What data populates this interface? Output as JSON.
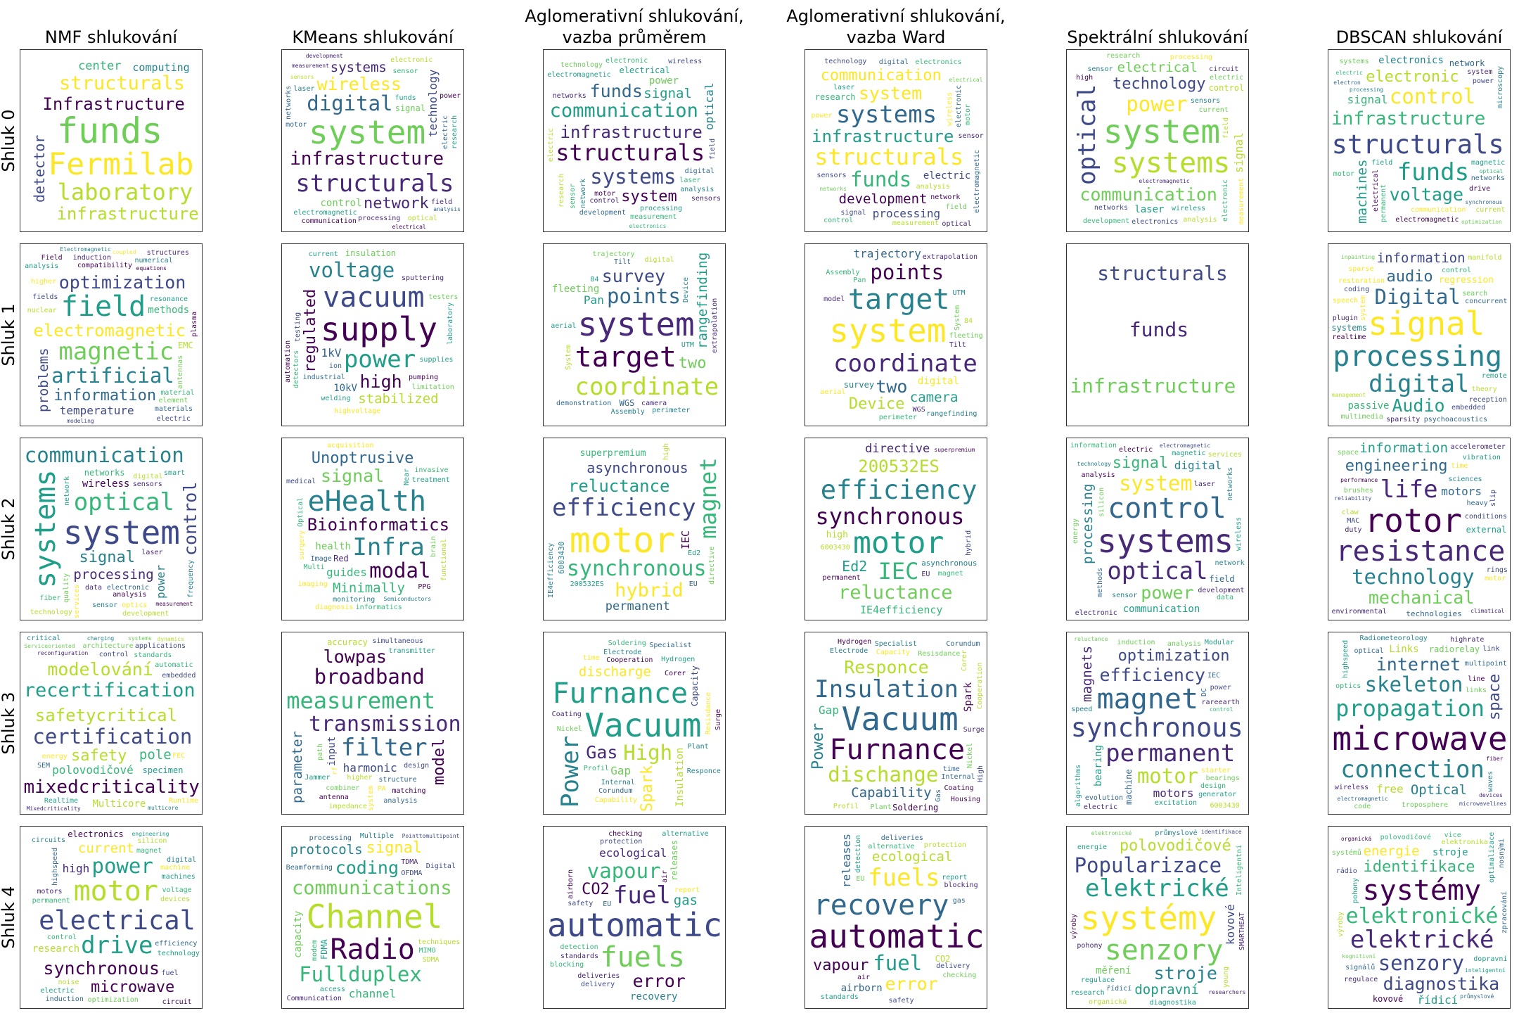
{
  "columns": [
    "NMF shlukování",
    "KMeans shlukování",
    "Aglomerativní shlukování,\nvazba průměrem",
    "Aglomerativní shlukování,\nvazba Ward",
    "Spektrální shlukování",
    "DBSCAN shlukování"
  ],
  "rows": [
    "Shluk 0",
    "Shluk 1",
    "Shluk 2",
    "Shluk 3",
    "Shluk 4"
  ],
  "palette": [
    "#440154",
    "#482878",
    "#3e4989",
    "#31688e",
    "#26828e",
    "#1f9e89",
    "#35b779",
    "#6ece58",
    "#b5de2b",
    "#fde725"
  ],
  "clouds": [
    [
      [
        "funds",
        "Fermilab",
        "Infrastructure",
        "laboratory",
        "structurals",
        "infrastructure",
        "detector",
        "center",
        "computing"
      ],
      [
        "system",
        "infrastructure",
        "structurals",
        "digital",
        "wireless",
        "network",
        "systems",
        "technology",
        "control",
        "signal",
        "electronic",
        "processing",
        "funds",
        "electric",
        "optical",
        "electromagnetic",
        "motor",
        "sensor",
        "laser",
        "power",
        "communication",
        "electrical",
        "field",
        "measurement",
        "analysis",
        "research",
        "networks",
        "development",
        "sensors"
      ],
      [
        "infrastructure",
        "structurals",
        "communication",
        "systems",
        "funds",
        "system",
        "signal",
        "optical",
        "power",
        "electrical",
        "control",
        "electronic",
        "digital",
        "electromagnetic",
        "processing",
        "network",
        "networks",
        "measurement",
        "wireless",
        "laser",
        "sensor",
        "technology",
        "analysis",
        "field",
        "motor",
        "electric",
        "development",
        "research",
        "electronics",
        "sensors"
      ],
      [
        "infrastructure",
        "structurals",
        "systems",
        "funds",
        "system",
        "communication",
        "development",
        "processing",
        "electric",
        "research",
        "wireless",
        "analysis",
        "sensors",
        "digital",
        "electronic",
        "laser",
        "technology",
        "electronics",
        "network",
        "sensor",
        "power",
        "signal",
        "motor",
        "measurement",
        "control",
        "networks",
        "field",
        "optical",
        "electromagnetic",
        "electrical"
      ],
      [
        "system",
        "systems",
        "optical",
        "power",
        "communication",
        "technology",
        "electrical",
        "signal",
        "laser",
        "control",
        "wireless",
        "current",
        "sensors",
        "electronic",
        "measurement",
        "networks",
        "electronics",
        "research",
        "analysis",
        "electric",
        "development",
        "field",
        "processing",
        "circuit",
        "high",
        "electromagnetic",
        "sensor"
      ],
      [
        "structurals",
        "infrastructure",
        "funds",
        "control",
        "voltage",
        "electronic",
        "machines",
        "signal",
        "electronics",
        "network",
        "communication",
        "magnetic",
        "field",
        "networks",
        "electromagnetic",
        "synchronous",
        "electrical",
        "drive",
        "motor",
        "power",
        "microscopy",
        "optimization",
        "processing",
        "systems",
        "electron",
        "system",
        "current",
        "optical",
        "permanent",
        "electric"
      ]
    ],
    [
      [
        "electromagnetic",
        "field",
        "magnetic",
        "artificial",
        "optimization",
        "information",
        "problems",
        "temperature",
        "methods",
        "EMC",
        "compatibility",
        "induction",
        "antennas",
        "nuclear",
        "resonance",
        "fields",
        "numerical",
        "analysis",
        "structures",
        "element",
        "material",
        "higher",
        "materials",
        "electric",
        "modeling",
        "Field",
        "Electromagnetic",
        "equations",
        "plasma",
        "coupled"
      ],
      [
        "supply",
        "vacuum",
        "power",
        "voltage",
        "high",
        "regulated",
        "stabilized",
        "1kV",
        "10kV",
        "insulation",
        "sputtering",
        "pumping",
        "testing",
        "highvoltage",
        "industrial",
        "testers",
        "supplies",
        "welding",
        "current",
        "laboratory",
        "limitation",
        "detectors",
        "automation",
        "ion"
      ],
      [
        "system",
        "target",
        "coordinate",
        "points",
        "survey",
        "two",
        "rangefinding",
        "Pan",
        "fleeting",
        "WGS",
        "aerial",
        "System",
        "Tilt",
        "camera",
        "UTM",
        "Device",
        "Assembly",
        "perimeter",
        "digital",
        "84",
        "trajectory",
        "demonstration",
        "extrapolation"
      ],
      [
        "system",
        "target",
        "coordinate",
        "points",
        "two",
        "Device",
        "camera",
        "trajectory",
        "digital",
        "survey",
        "System",
        "fleeting",
        "Pan",
        "Tilt",
        "WGS",
        "perimeter",
        "aerial",
        "84",
        "UTM",
        "rangefinding",
        "extrapolation",
        "model",
        "Assembly"
      ],
      [
        "structurals",
        "funds",
        "infrastructure"
      ],
      [
        "signal",
        "processing",
        "digital",
        "Digital",
        "Audio",
        "audio",
        "information",
        "regression",
        "passive",
        "systems",
        "restoration",
        "system",
        "sparsity",
        "concurrent",
        "coding",
        "control",
        "reception",
        "plugin",
        "theory",
        "psychoacoustics",
        "sparse",
        "embedded",
        "realtime",
        "remote",
        "search",
        "speech",
        "inpainting",
        "multimedia",
        "management",
        "manifold"
      ]
    ],
    [
      [
        "system",
        "systems",
        "optical",
        "communication",
        "control",
        "signal",
        "processing",
        "power",
        "wireless",
        "networks",
        "laser",
        "network",
        "digital",
        "electronic",
        "data",
        "quality",
        "services",
        "sensors",
        "analysis",
        "optics",
        "technology",
        "sensor",
        "smart",
        "development",
        "frequency",
        "measurement",
        "information",
        "fiber",
        "transmission",
        "communications"
      ],
      [
        "Bioinformatics",
        "eHealth",
        "Infra",
        "modal",
        "signal",
        "Unoptrusive",
        "Minimally",
        "guides",
        "health",
        "Red",
        "monitoring",
        "Near",
        "Multi",
        "acquisition",
        "Image",
        "informatics",
        "surgery",
        "imaging",
        "Semiconductors",
        "brain",
        "PPG",
        "functional",
        "treatment",
        "diagnosis",
        "invasive",
        "medical",
        "Optical"
      ],
      [
        "motor",
        "efficiency",
        "synchronous",
        "magnet",
        "hybrid",
        "reluctance",
        "asynchronous",
        "permanent",
        "IEC",
        "superpremium",
        "6003430",
        "high",
        "Ed2",
        "IE4efficiency",
        "directive",
        "200532ES",
        "EU"
      ],
      [
        "synchronous",
        "motor",
        "efficiency",
        "IEC",
        "reluctance",
        "200532ES",
        "Ed2",
        "directive",
        "IE4efficiency",
        "high",
        "asynchronous",
        "permanent",
        "hybrid",
        "6003430",
        "EU",
        "magnet",
        "superpremium"
      ],
      [
        "systems",
        "control",
        "optical",
        "system",
        "power",
        "signal",
        "processing",
        "digital",
        "communication",
        "field",
        "analysis",
        "sensor",
        "laser",
        "network",
        "methods",
        "electric",
        "wireless",
        "magnetic",
        "electromagnetic",
        "silicon",
        "networks",
        "services",
        "development",
        "energy",
        "information",
        "electronic",
        "technology",
        "data"
      ],
      [
        "rotor",
        "resistance",
        "life",
        "technology",
        "mechanical",
        "engineering",
        "information",
        "motors",
        "technologies",
        "external",
        "sciences",
        "conditions",
        "environmental",
        "time",
        "performance",
        "heavy",
        "reliability",
        "vibration",
        "MAC",
        "duty",
        "claw",
        "slip",
        "accelerometer",
        "brushes",
        "rings",
        "alternator",
        "motor",
        "climatical",
        "space"
      ]
    ],
    [
      [
        "safetycritical",
        "mixedcriticality",
        "recertification",
        "certification",
        "modelování",
        "safety",
        "pole",
        "polovodičové",
        "Multicore",
        "specimen",
        "control",
        "energy",
        "architecture",
        "reconfiguration",
        "applications",
        "automatic",
        "standards",
        "Realtime",
        "embedded",
        "Runtime",
        "charging",
        "Serviceoriented",
        "critical",
        "SEM",
        "FEC",
        "dynamics",
        "systems",
        "Mixedcriticality",
        "multicore"
      ],
      [
        "transmission",
        "measurement",
        "filter",
        "broadband",
        "lowpas",
        "model",
        "parameter",
        "harmonic",
        "input",
        "accuracy",
        "higher",
        "design",
        "structure",
        "PA",
        "path",
        "system",
        "combiner",
        "matching",
        "rf",
        "transmitter",
        "Jammer",
        "simultaneous",
        "antenna",
        "impedance",
        "analysis"
      ],
      [
        "Vacuum",
        "Furnance",
        "Power",
        "High",
        "Gas",
        "Spark",
        "discharge",
        "Gap",
        "Insulation",
        "Capacity",
        "Cooperation",
        "Nickel",
        "Corer",
        "Electrode",
        "Profil",
        "Coating",
        "Internal",
        "Resisdance",
        "time",
        "Plant",
        "Soldering",
        "Hydrogen",
        "Corundum",
        "Capability",
        "Specialist",
        "Responce",
        "Surge"
      ],
      [
        "Vacuum",
        "Furnance",
        "Insulation",
        "dischange",
        "Responce",
        "Power",
        "Capability",
        "Gap",
        "Spark",
        "Soldering",
        "Internal",
        "Capacity",
        "Specialist",
        "Electrode",
        "Surge",
        "Cooperation",
        "Nickel",
        "time",
        "Plant",
        "Gas",
        "Coating",
        "Resisdance",
        "Hydrogen",
        "Corundum",
        "Corer",
        "High",
        "Profil",
        "Housing"
      ],
      [
        "synchronous",
        "magnet",
        "permanent",
        "motor",
        "efficiency",
        "optimization",
        "magnets",
        "motors",
        "bearing",
        "machine",
        "rareearth",
        "DC",
        "IEC",
        "starter",
        "bearings",
        "excitation",
        "induction",
        "design",
        "power",
        "generator",
        "evolution",
        "analysis",
        "6003430",
        "electric",
        "speed",
        "Modular",
        "control",
        "algorithms",
        "ventilation",
        "reluctance"
      ],
      [
        "microwave",
        "propagation",
        "connection",
        "skeleton",
        "internet",
        "space",
        "Optical",
        "free",
        "Links",
        "radiorelay",
        "optics",
        "troposphere",
        "Radiometeorology",
        "electromagnetic",
        "highspeed",
        "multipoint",
        "code",
        "optical",
        "waves",
        "line",
        "highrate",
        "microwavelines",
        "wireless",
        "devices",
        "systems",
        "fiber",
        "link",
        "links"
      ]
    ],
    [
      [
        "electrical",
        "motor",
        "drive",
        "power",
        "synchronous",
        "microwave",
        "current",
        "high",
        "research",
        "electronics",
        "permanent",
        "devices",
        "efficiency",
        "motors",
        "machines",
        "control",
        "noise",
        "magnet",
        "highspeed",
        "optimization",
        "voltage",
        "machine",
        "fuel",
        "silicon",
        "engineering",
        "digital",
        "electric",
        "circuit",
        "circuits",
        "induction",
        "technology"
      ],
      [
        "Channel",
        "Radio",
        "communications",
        "Fullduplex",
        "coding",
        "signal",
        "protocols",
        "channel",
        "capacity",
        "FDMA",
        "techniques",
        "MIMO",
        "access",
        "Beamforming",
        "TDMA",
        "Communication",
        "OFDMA",
        "Digital",
        "modem",
        "SDMA",
        "Multiple",
        "processing",
        "Pointtomultipoint"
      ],
      [
        "automatic",
        "fuels",
        "fuel",
        "vapour",
        "error",
        "CO2",
        "gas",
        "ecological",
        "recovery",
        "releases",
        "air",
        "safety",
        "report",
        "deliveries",
        "protection",
        "standards",
        "checking",
        "airborn",
        "delivery",
        "detection",
        "alternative",
        "blocking",
        "EU"
      ],
      [
        "automatic",
        "recovery",
        "fuels",
        "fuel",
        "error",
        "vapour",
        "ecological",
        "releases",
        "airborn",
        "CO2",
        "alternative",
        "air",
        "delivery",
        "deliveries",
        "gas",
        "EU",
        "safety",
        "protection",
        "standards",
        "checking",
        "detection",
        "report",
        "blocking"
      ],
      [
        "systémy",
        "senzory",
        "elektrické",
        "Popularizace",
        "stroje",
        "polovodičové",
        "dopravní",
        "kovové",
        "měření",
        "diagnostika",
        "řídicí",
        "regulace",
        "pohony",
        "SMARTHEAT",
        "energie",
        "průmyslové",
        "Inteligentní",
        "elektronické",
        "young",
        "research",
        "organická",
        "identifikace",
        "výroby",
        "researchers",
        "fotoluminiscence"
      ],
      [
        "elektronické",
        "systémy",
        "elektrické",
        "senzory",
        "diagnostika",
        "identifikace",
        "energie",
        "řídicí",
        "stroje",
        "kovové",
        "polovodičové",
        "regulace",
        "pohony",
        "dopravní",
        "elektronika",
        "inteligentní",
        "signálů",
        "optimalizace",
        "zpracování",
        "nosnými",
        "výroby",
        "rádio",
        "průmyslové",
        "vice",
        "systémů",
        "organická",
        "fotoluminiscence",
        "kognitivní"
      ]
    ]
  ]
}
